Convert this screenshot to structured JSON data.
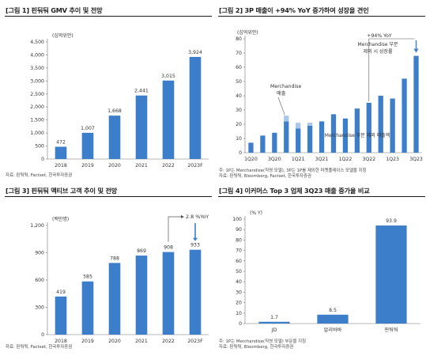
{
  "colors": {
    "bar": "#3d7ecb",
    "bar_light": "#a9c7ea",
    "line": "#3d7ecb",
    "axis": "#777777",
    "text": "#222222"
  },
  "chart_data": [
    {
      "id": "p1",
      "type": "bar",
      "title": "[그림 1] 핀둬둬 GMV 추이 및 전망",
      "unit": "(십억위안)",
      "categories": [
        "2018",
        "2019",
        "2020",
        "2021",
        "2022",
        "2023F"
      ],
      "values": [
        472,
        1007,
        1668,
        2441,
        3015,
        3924
      ],
      "value_labels": [
        "472",
        "1,007",
        "1,668",
        "2,441",
        "3,015",
        "3,924"
      ],
      "ylim": [
        0,
        4500
      ],
      "yticks": [
        0,
        500,
        1000,
        1500,
        2000,
        2500,
        3000,
        3500,
        4000,
        4500
      ],
      "ytick_labels": [
        "0",
        "500",
        "1,000",
        "1,500",
        "2,000",
        "2,500",
        "3,000",
        "3,500",
        "4,000",
        "4,500"
      ],
      "source": "자료: 핀둬둬, Factset, 한국투자증권"
    },
    {
      "id": "p2",
      "type": "bar",
      "stacked": true,
      "title": "[그림 2] 3P 매출이 +94% YoY 증가하여 성장을 견인",
      "unit": "(십억위안)",
      "categories": [
        "1Q20",
        "2Q20",
        "3Q20",
        "4Q20",
        "1Q21",
        "2Q21",
        "3Q21",
        "4Q21",
        "1Q22",
        "2Q22",
        "3Q22",
        "4Q22",
        "1Q23",
        "2Q23",
        "3Q23"
      ],
      "tick_categories": [
        "1Q20",
        "3Q20",
        "1Q21",
        "3Q21",
        "1Q22",
        "3Q22",
        "1Q23",
        "3Q23"
      ],
      "series": [
        {
          "name": "",
          "values": [
            7,
            12,
            14,
            22,
            17,
            19,
            22,
            27,
            24,
            31,
            35,
            40,
            38,
            52,
            68
          ]
        },
        {
          "name": "Merchandise",
          "values": [
            0,
            0,
            0,
            4,
            4,
            2,
            0,
            0,
            0,
            0,
            0,
            0,
            0,
            0,
            0
          ]
        }
      ],
      "ylim": [
        0,
        80
      ],
      "yticks": [
        0,
        10,
        20,
        30,
        40,
        50,
        60,
        70,
        80
      ],
      "annotations": {
        "merch_top": "Merchandise",
        "merch_sub": "매출",
        "merch_bottom": "Merchandise 부문 제외 매출액",
        "growth": "+94% YoY",
        "growth_sub1": "Merchandise 부문",
        "growth_sub2": "제외 시 성장률"
      },
      "notes": [
        "주: 1P는 Merchandise(직영 모델), 3P는 1P를 제외한 마켓플레이스 모델을 지칭",
        "자료: 핀둬둬, Bloomberg, Factset, 한국투자증권"
      ]
    },
    {
      "id": "p3",
      "type": "bar",
      "title": "[그림 3] 핀둬둬 액티브 고객 추이 및 전망",
      "unit": "(백만명)",
      "categories": [
        "2018",
        "2019",
        "2020",
        "2021",
        "2022",
        "2023F"
      ],
      "values": [
        419,
        585,
        788,
        869,
        908,
        933
      ],
      "value_labels": [
        "419",
        "585",
        "788",
        "869",
        "908",
        "933"
      ],
      "ylim": [
        0,
        1200
      ],
      "yticks": [
        0,
        300,
        600,
        900,
        1200
      ],
      "ytick_labels": [
        "0",
        "300",
        "600",
        "900",
        "1,200"
      ],
      "annotation": "2.8 %YoY",
      "source": "자료: 핀둬둬, Factset, 한국투자증권"
    },
    {
      "id": "p4",
      "type": "bar",
      "title": "[그림 4] 이커머스 Top 3 업체 3Q23 매출 증가율 비교",
      "unit": "(% Y)",
      "categories": [
        "JD",
        "알리바바",
        "핀둬둬"
      ],
      "values": [
        1.7,
        8.5,
        93.9
      ],
      "value_labels": [
        "1.7",
        "8.5",
        "93.9"
      ],
      "ylim": [
        0,
        100
      ],
      "yticks": [
        0,
        10,
        20,
        30,
        40,
        50,
        60,
        70,
        80,
        90,
        100
      ],
      "notes": [
        "주: 1P는 Merchandise(직영 모델) 부문을 지칭",
        "자료: 핀둬둬, Bloomberg, 한국투자증권"
      ]
    }
  ]
}
